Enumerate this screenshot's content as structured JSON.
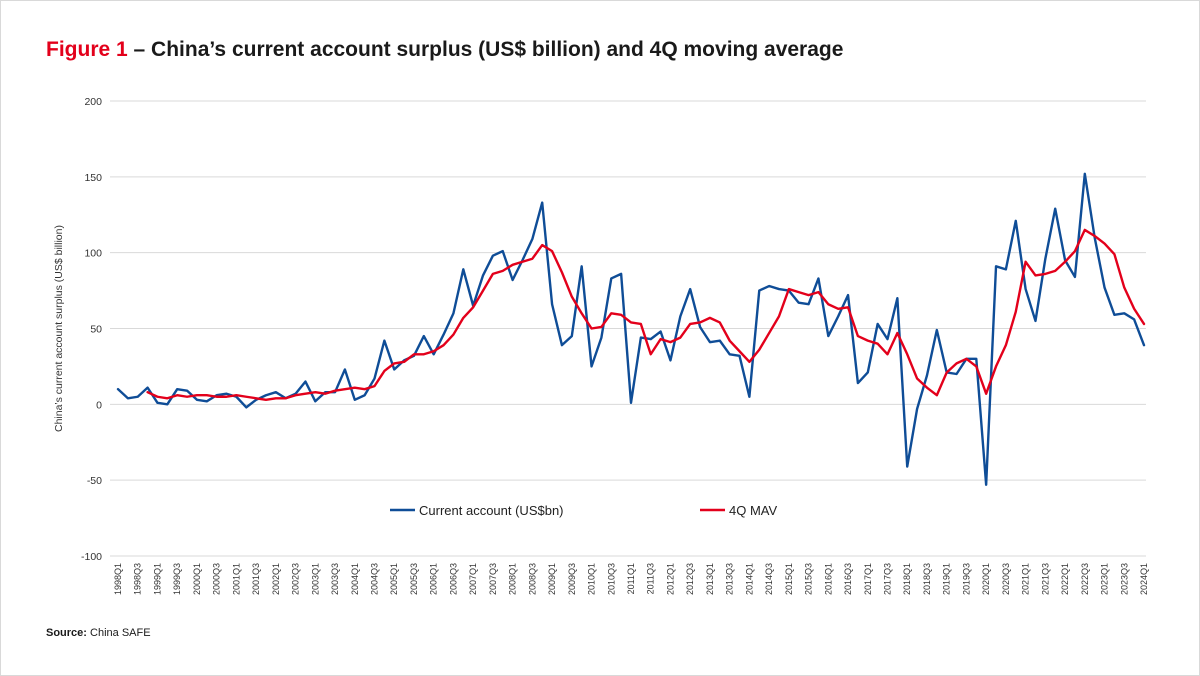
{
  "header": {
    "figure_label": "Figure 1",
    "title": "– China’s current account surplus (US$ billion) and 4Q moving average"
  },
  "source": {
    "label": "Source:",
    "text": "China SAFE"
  },
  "colors": {
    "current_account": "#0f4d97",
    "mav": "#e3001b",
    "gridline": "#d9d9d9",
    "figure_label": "#e3001b"
  },
  "chart_data": {
    "type": "line",
    "ylabel": "China’s current account surplus (US$ billion)",
    "ylim": [
      -100,
      200
    ],
    "yticks": [
      -100,
      -50,
      0,
      50,
      100,
      150,
      200
    ],
    "grid": true,
    "legend_position": "bottom-center",
    "x": [
      "1998Q1",
      "1998Q2",
      "1998Q3",
      "1998Q4",
      "1999Q1",
      "1999Q2",
      "1999Q3",
      "1999Q4",
      "2000Q1",
      "2000Q2",
      "2000Q3",
      "2000Q4",
      "2001Q1",
      "2001Q2",
      "2001Q3",
      "2001Q4",
      "2002Q1",
      "2002Q2",
      "2002Q3",
      "2002Q4",
      "2003Q1",
      "2003Q2",
      "2003Q3",
      "2003Q4",
      "2004Q1",
      "2004Q2",
      "2004Q3",
      "2004Q4",
      "2005Q1",
      "2005Q2",
      "2005Q3",
      "2005Q4",
      "2006Q1",
      "2006Q2",
      "2006Q3",
      "2006Q4",
      "2007Q1",
      "2007Q2",
      "2007Q3",
      "2007Q4",
      "2008Q1",
      "2008Q2",
      "2008Q3",
      "2008Q4",
      "2009Q1",
      "2009Q2",
      "2009Q3",
      "2009Q4",
      "2010Q1",
      "2010Q2",
      "2010Q3",
      "2010Q4",
      "2011Q1",
      "2011Q2",
      "2011Q3",
      "2011Q4",
      "2012Q1",
      "2012Q2",
      "2012Q3",
      "2012Q4",
      "2013Q1",
      "2013Q2",
      "2013Q3",
      "2013Q4",
      "2014Q1",
      "2014Q2",
      "2014Q3",
      "2014Q4",
      "2015Q1",
      "2015Q2",
      "2015Q3",
      "2015Q4",
      "2016Q1",
      "2016Q2",
      "2016Q3",
      "2016Q4",
      "2017Q1",
      "2017Q2",
      "2017Q3",
      "2017Q4",
      "2018Q1",
      "2018Q2",
      "2018Q3",
      "2018Q4",
      "2019Q1",
      "2019Q2",
      "2019Q3",
      "2019Q4",
      "2020Q1",
      "2020Q2",
      "2020Q3",
      "2020Q4",
      "2021Q1",
      "2021Q2",
      "2021Q3",
      "2021Q4",
      "2022Q1",
      "2022Q2",
      "2022Q3",
      "2022Q4",
      "2023Q1",
      "2023Q2",
      "2023Q3",
      "2023Q4",
      "2024Q1"
    ],
    "tick_labels": [
      "1998Q1",
      "1998Q3",
      "1999Q1",
      "1999Q3",
      "2000Q1",
      "2000Q3",
      "2001Q1",
      "2001Q3",
      "2002Q1",
      "2002Q3",
      "2003Q1",
      "2003Q3",
      "2004Q1",
      "2004Q3",
      "2005Q1",
      "2005Q3",
      "2006Q1",
      "2006Q3",
      "2007Q1",
      "2007Q3",
      "2008Q1",
      "2008Q3",
      "2009Q1",
      "2009Q3",
      "2010Q1",
      "2010Q3",
      "2011Q1",
      "2011Q3",
      "2012Q1",
      "2012Q3",
      "2013Q1",
      "2013Q3",
      "2014Q1",
      "2014Q3",
      "2015Q1",
      "2015Q3",
      "2016Q1",
      "2016Q3",
      "2017Q1",
      "2017Q3",
      "2018Q1",
      "2018Q3",
      "2019Q1",
      "2019Q3",
      "2020Q1",
      "2020Q3",
      "2021Q1",
      "2021Q3",
      "2022Q1",
      "2022Q3",
      "2023Q1",
      "2023Q3",
      "2024Q1"
    ],
    "series": [
      {
        "name": "Current account (US$bn)",
        "values": [
          10,
          4,
          5,
          11,
          1,
          0,
          10,
          9,
          3,
          2,
          6,
          7,
          5,
          -2,
          3,
          6,
          8,
          4,
          7,
          15,
          2,
          8,
          8,
          23,
          3,
          6,
          17,
          42,
          23,
          29,
          32,
          45,
          33,
          46,
          60,
          89,
          65,
          85,
          98,
          101,
          82,
          95,
          109,
          133,
          66,
          39,
          45,
          91,
          25,
          44,
          83,
          86,
          1,
          44,
          43,
          48,
          29,
          58,
          76,
          51,
          41,
          42,
          33,
          32,
          5,
          75,
          78,
          76,
          75,
          67,
          66,
          83,
          45,
          58,
          72,
          14,
          21,
          53,
          43,
          70,
          -41,
          -3,
          19,
          49,
          21,
          20,
          30,
          30,
          -53,
          91,
          89,
          121,
          76,
          55,
          96,
          129,
          95,
          84,
          152,
          110,
          77,
          59,
          60,
          56,
          39
        ]
      },
      {
        "name": "4Q MAV",
        "values": [
          null,
          null,
          null,
          8,
          5,
          4,
          6,
          5,
          6,
          6,
          5,
          5,
          6,
          5,
          4,
          3,
          4,
          4,
          6,
          7,
          8,
          7,
          9,
          10,
          11,
          10,
          12,
          22,
          27,
          28,
          33,
          33,
          35,
          39,
          46,
          57,
          64,
          75,
          86,
          88,
          92,
          94,
          96,
          105,
          101,
          87,
          71,
          60,
          50,
          51,
          60,
          59,
          54,
          53,
          33,
          43,
          41,
          44,
          53,
          54,
          57,
          54,
          42,
          35,
          28,
          36,
          47,
          58,
          76,
          74,
          72,
          74,
          66,
          63,
          64,
          45,
          42,
          40,
          33,
          47,
          33,
          17,
          11,
          6,
          21,
          27,
          30,
          25,
          7,
          25,
          39,
          61,
          94,
          85,
          86,
          88,
          94,
          101,
          115,
          111,
          106,
          99,
          77,
          63,
          53
        ]
      }
    ]
  }
}
